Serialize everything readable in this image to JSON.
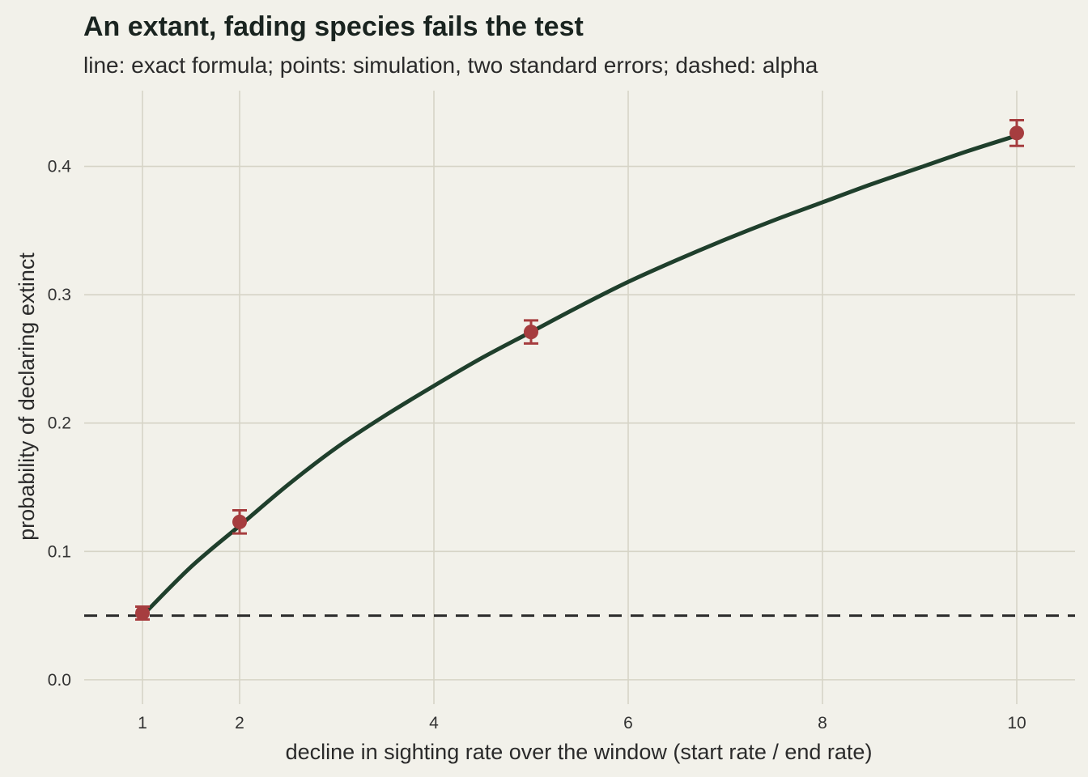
{
  "chart_data": {
    "type": "line",
    "title": "An extant, fading species fails the test",
    "subtitle": "line: exact formula; points: simulation, two standard errors; dashed: alpha",
    "xlabel": "decline in sighting rate over the window (start rate / end rate)",
    "ylabel": "probability of declaring extinct",
    "xlim": [
      0.4,
      10.6
    ],
    "ylim": [
      -0.019,
      0.459
    ],
    "x_ticks": [
      1,
      2,
      4,
      6,
      8,
      10
    ],
    "x_tick_labels": [
      "1",
      "2",
      "4",
      "6",
      "8",
      "10"
    ],
    "y_ticks": [
      0.0,
      0.1,
      0.2,
      0.3,
      0.4
    ],
    "y_tick_labels": [
      "0.0",
      "0.1",
      "0.2",
      "0.3",
      "0.4"
    ],
    "grid": true,
    "alpha": 0.05,
    "exact_formula": {
      "x": [
        1,
        1.5,
        2,
        2.5,
        3,
        3.5,
        4,
        4.5,
        5,
        5.5,
        6,
        6.5,
        7,
        7.5,
        8,
        8.5,
        9,
        9.5,
        10
      ],
      "y": [
        0.05,
        0.088,
        0.12,
        0.152,
        0.181,
        0.206,
        0.229,
        0.251,
        0.271,
        0.291,
        0.31,
        0.327,
        0.343,
        0.358,
        0.372,
        0.386,
        0.399,
        0.412,
        0.424
      ]
    },
    "simulation": {
      "x": [
        1,
        2,
        5,
        10
      ],
      "y": [
        0.052,
        0.123,
        0.271,
        0.426
      ],
      "lower": [
        0.047,
        0.114,
        0.262,
        0.416
      ],
      "upper": [
        0.057,
        0.132,
        0.28,
        0.436
      ]
    },
    "colors": {
      "background": "#F2F1EA",
      "grid": "#D6D4C6",
      "line": "#1F3F2C",
      "points": "#A63D3F",
      "alpha_line": "#2B2B2B",
      "title": "#1A2420"
    }
  }
}
